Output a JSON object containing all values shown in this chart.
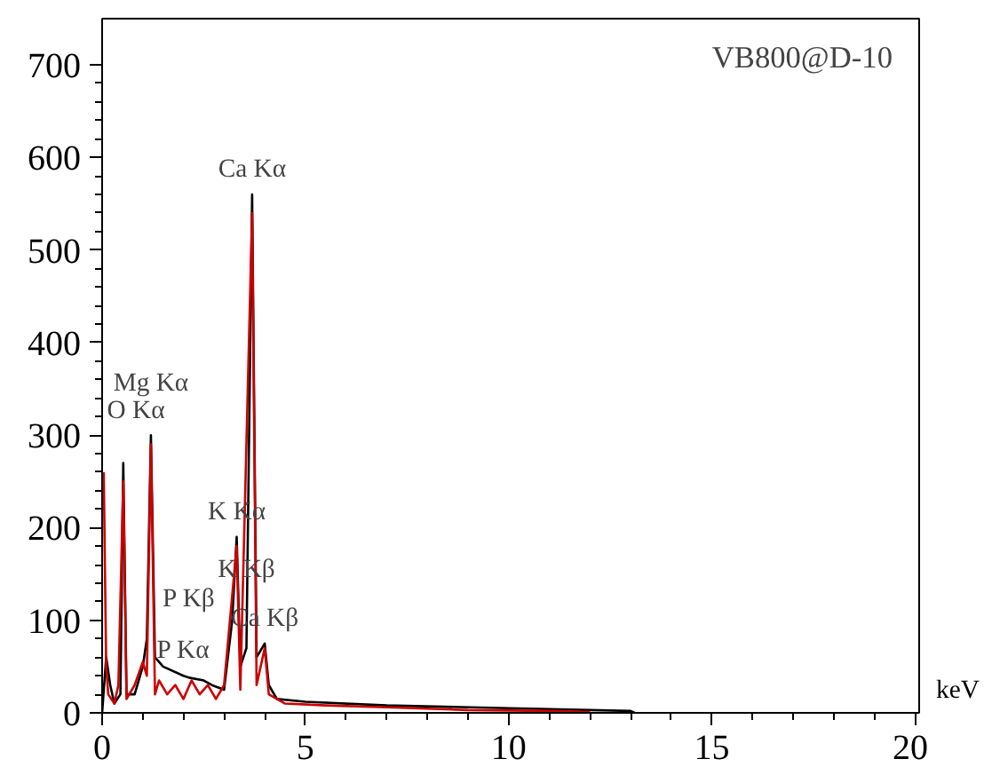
{
  "chart_data": {
    "type": "line",
    "xlabel": "keV",
    "xlim": [
      0,
      20.1
    ],
    "ylim": [
      0,
      750
    ],
    "xticks": [
      0,
      5,
      10,
      15,
      20
    ],
    "yticks": [
      0,
      100,
      200,
      300,
      400,
      500,
      600,
      700
    ],
    "grid": false,
    "marker": "none",
    "line_style": "solid",
    "series": [
      {
        "color": "#000000",
        "x": [
          0,
          0.1,
          0.2,
          0.3,
          0.45,
          0.52,
          0.6,
          0.8,
          1.0,
          1.1,
          1.2,
          1.3,
          1.5,
          2.0,
          2.14,
          2.5,
          2.7,
          3.0,
          3.2,
          3.31,
          3.4,
          3.55,
          3.69,
          3.8,
          4.0,
          4.1,
          4.3,
          5,
          7,
          10,
          13,
          13.1
        ],
        "values": [
          0,
          60,
          30,
          10,
          20,
          270,
          20,
          20,
          50,
          80,
          300,
          60,
          50,
          40,
          38,
          35,
          30,
          25,
          100,
          190,
          50,
          70,
          560,
          60,
          75,
          30,
          15,
          12,
          8,
          5,
          2,
          0
        ]
      },
      {
        "color": "#cc0000",
        "x": [
          0.04,
          0.1,
          0.15,
          0.3,
          0.4,
          0.52,
          0.6,
          0.8,
          1.0,
          1.1,
          1.2,
          1.3,
          1.4,
          1.6,
          1.8,
          2.0,
          2.2,
          2.4,
          2.6,
          2.8,
          3.0,
          3.31,
          3.4,
          3.69,
          3.8,
          4.0,
          4.1,
          4.5,
          5.5,
          7,
          9,
          11,
          12
        ],
        "values": [
          260,
          50,
          20,
          10,
          30,
          250,
          15,
          30,
          55,
          40,
          290,
          20,
          35,
          20,
          30,
          15,
          35,
          20,
          30,
          15,
          30,
          180,
          25,
          540,
          30,
          70,
          20,
          10,
          8,
          6,
          3,
          2,
          1
        ]
      }
    ],
    "annotations": [
      "VB800@D-10",
      {
        "text": "O Kα",
        "x": 0.52,
        "y": 270
      },
      {
        "text": "Mg Kα",
        "x": 1.2,
        "y": 300
      },
      {
        "text": "Ca Kα",
        "x": 3.69,
        "y": 560
      },
      {
        "text": "K Kα",
        "x": 3.31,
        "y": 190
      },
      {
        "text": "P Kα",
        "x": 2.0,
        "y": 40
      },
      {
        "text": "P Kβ",
        "x": 2.14,
        "y": 38
      },
      {
        "text": "Ca Kβ",
        "x": 4.0,
        "y": 75
      },
      {
        "text": "K Kβ",
        "x": 3.55,
        "y": 70
      }
    ]
  }
}
